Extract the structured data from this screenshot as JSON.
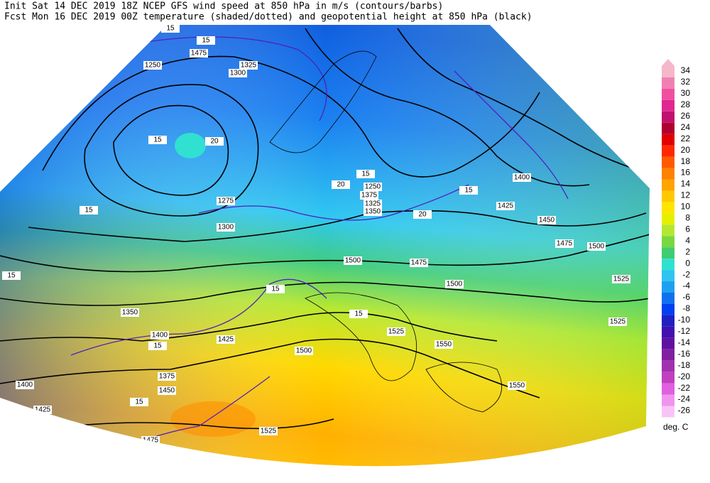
{
  "header": {
    "line1": "Init  Sat 14 DEC 2019 18Z  NCEP GFS wind speed at 850 hPa in m/s (contours/barbs)",
    "line2": "Fcst Mon 16 DEC 2019 00Z  temperature (shaded/dotted) and geopotential height at 850 hPa (black)"
  },
  "colorbar": {
    "ticks": [
      34,
      32,
      30,
      28,
      26,
      24,
      22,
      20,
      18,
      16,
      14,
      12,
      10,
      8,
      6,
      4,
      2,
      0,
      -2,
      -4,
      -6,
      -8,
      -10,
      -12,
      -14,
      -16,
      -18,
      -20,
      -22,
      -24,
      -26
    ],
    "colors": [
      "#f4b8c8",
      "#f080b4",
      "#f050a0",
      "#e02890",
      "#c01070",
      "#b00030",
      "#e00000",
      "#ff2800",
      "#ff5a00",
      "#ff8200",
      "#ffa400",
      "#ffc800",
      "#ffe400",
      "#e4f000",
      "#b4e830",
      "#78d840",
      "#40cc70",
      "#30e0d0",
      "#30c4f0",
      "#1ea0f0",
      "#1070f0",
      "#0040f0",
      "#2020c0",
      "#4010b0",
      "#6010a0",
      "#8020a0",
      "#a030b0",
      "#c040c0",
      "#e060e0",
      "#f094f0",
      "#f8c4f8"
    ],
    "unit": "deg. C"
  },
  "map_labels": [
    "1475",
    "1250",
    "1300",
    "1325",
    "1400",
    "1250",
    "1275",
    "1300",
    "1375",
    "1325",
    "1350",
    "1350",
    "1375",
    "1400",
    "1425",
    "1400",
    "1425",
    "1450",
    "1475",
    "1425",
    "1450",
    "1500",
    "1500",
    "1475",
    "1525",
    "1500",
    "1525",
    "1550",
    "1550",
    "1525",
    "1500",
    "1475",
    "1525",
    "15",
    "20",
    "15",
    "15",
    "15",
    "15",
    "20",
    "15",
    "15",
    "15",
    "15",
    "20",
    "15",
    "15"
  ]
}
